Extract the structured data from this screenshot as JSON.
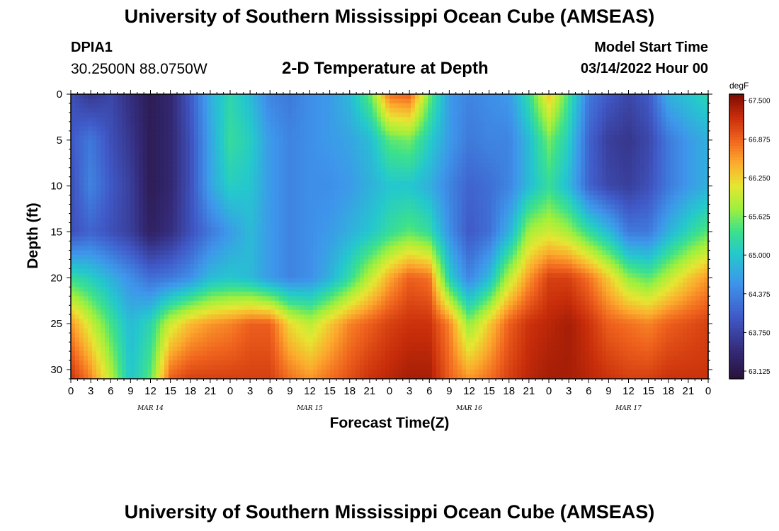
{
  "chart_data": {
    "type": "heatmap",
    "title": "University of Southern Mississippi Ocean Cube (AMSEAS)",
    "subtitle": "2-D Temperature at Depth",
    "station": "DPIA1",
    "coords": "30.2500N  88.0750W",
    "model_start_label": "Model Start Time",
    "model_start": "03/14/2022 Hour 00",
    "xlabel": "Forecast Time(Z)",
    "ylabel": "Depth (ft)",
    "x_range_hours": [
      0,
      96
    ],
    "y_range_ft": [
      0,
      31
    ],
    "x_tick_labels": [
      "0",
      "3",
      "6",
      "9",
      "12",
      "15",
      "18",
      "21",
      "0",
      "3",
      "6",
      "9",
      "12",
      "15",
      "18",
      "21",
      "0",
      "3",
      "6",
      "9",
      "12",
      "15",
      "18",
      "21",
      "0",
      "3",
      "6",
      "9",
      "12",
      "15",
      "18",
      "21",
      "0"
    ],
    "y_tick_labels": [
      "0",
      "5",
      "10",
      "15",
      "20",
      "25",
      "30"
    ],
    "y_tick_values": [
      0,
      5,
      10,
      15,
      20,
      25,
      30
    ],
    "date_labels": [
      "MAR 14",
      "MAR 15",
      "MAR 16",
      "MAR 17"
    ],
    "colorbar": {
      "units": "degF",
      "min": 63.0,
      "max": 67.6,
      "tick_labels": [
        "67.500",
        "66.875",
        "66.250",
        "65.625",
        "65.000",
        "64.375",
        "63.750",
        "63.125"
      ],
      "tick_values": [
        67.5,
        66.875,
        66.25,
        65.625,
        65.0,
        64.375,
        63.75,
        63.125
      ]
    },
    "grid_hours": [
      0,
      3,
      6,
      9,
      12,
      15,
      18,
      21,
      24,
      27,
      30,
      33,
      36,
      39,
      42,
      45,
      48,
      51,
      54,
      57,
      60,
      63,
      66,
      69,
      72,
      75,
      78,
      81,
      84,
      87,
      90,
      93,
      96
    ],
    "grid_depths_ft": [
      0,
      5,
      10,
      15,
      20,
      25,
      31
    ],
    "temperature_degF": [
      [
        63.9,
        63.6,
        63.8,
        63.5,
        63.2,
        63.4,
        64.0,
        64.8,
        65.2,
        64.9,
        64.4,
        64.3,
        64.5,
        64.6,
        64.9,
        65.5,
        66.8,
        66.9,
        65.6,
        64.6,
        64.4,
        64.5,
        64.6,
        65.3,
        66.3,
        65.4,
        64.3,
        64.0,
        63.8,
        64.0,
        64.8,
        65.0,
        65.2
      ],
      [
        64.0,
        64.3,
        63.9,
        63.6,
        63.2,
        63.4,
        63.9,
        64.7,
        65.3,
        65.1,
        64.6,
        64.4,
        64.5,
        64.6,
        64.7,
        64.9,
        65.5,
        65.6,
        65.1,
        64.6,
        64.3,
        64.4,
        64.4,
        64.9,
        65.6,
        65.1,
        64.1,
        63.7,
        63.6,
        63.8,
        64.3,
        64.6,
        64.8
      ],
      [
        63.9,
        64.4,
        64.0,
        63.7,
        63.2,
        63.4,
        63.9,
        64.7,
        65.1,
        65.0,
        64.6,
        64.4,
        64.5,
        64.5,
        64.6,
        64.8,
        65.0,
        65.0,
        64.8,
        64.4,
        64.1,
        64.2,
        64.4,
        64.9,
        65.3,
        64.9,
        64.1,
        63.8,
        63.7,
        63.9,
        64.3,
        64.6,
        64.8
      ],
      [
        63.9,
        64.1,
        63.9,
        63.7,
        63.3,
        63.5,
        63.9,
        64.3,
        64.6,
        64.9,
        64.6,
        64.4,
        64.5,
        64.6,
        64.8,
        65.0,
        65.3,
        65.5,
        65.3,
        64.5,
        64.0,
        64.2,
        64.8,
        65.8,
        66.0,
        65.8,
        65.3,
        64.9,
        64.3,
        64.3,
        64.8,
        65.2,
        65.5
      ],
      [
        65.3,
        65.1,
        64.8,
        64.5,
        64.2,
        64.3,
        64.5,
        64.9,
        65.0,
        64.9,
        64.6,
        64.4,
        64.5,
        64.8,
        65.3,
        65.9,
        66.5,
        66.9,
        66.8,
        65.1,
        64.4,
        64.9,
        65.9,
        66.6,
        67.1,
        67.1,
        66.8,
        66.3,
        65.7,
        65.5,
        65.9,
        66.3,
        66.6
      ],
      [
        66.6,
        66.0,
        65.4,
        64.9,
        65.2,
        66.0,
        66.4,
        66.6,
        66.7,
        66.9,
        66.9,
        66.2,
        65.9,
        66.3,
        66.7,
        66.9,
        67.1,
        67.2,
        67.2,
        66.7,
        65.7,
        66.3,
        66.9,
        67.2,
        67.3,
        67.4,
        67.2,
        66.9,
        66.8,
        66.7,
        66.9,
        67.0,
        67.1
      ],
      [
        67.2,
        66.7,
        65.9,
        65.0,
        65.5,
        66.9,
        67.1,
        67.1,
        67.1,
        67.1,
        67.1,
        66.8,
        66.6,
        66.8,
        67.0,
        67.2,
        67.3,
        67.4,
        67.4,
        66.9,
        66.6,
        66.8,
        67.1,
        67.3,
        67.4,
        67.4,
        67.3,
        67.2,
        67.1,
        67.1,
        67.2,
        67.2,
        67.2
      ]
    ]
  }
}
